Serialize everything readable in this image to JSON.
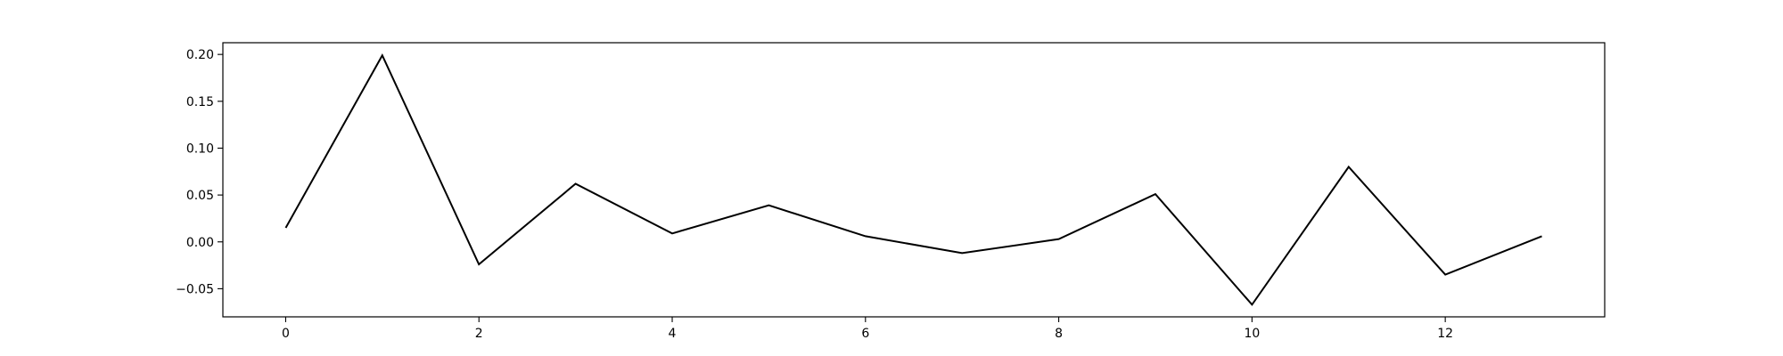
{
  "chart_data": {
    "type": "line",
    "title": "",
    "xlabel": "",
    "ylabel": "",
    "xlim": [
      -0.65,
      13.65
    ],
    "ylim": [
      -0.08,
      0.2125
    ],
    "x_ticks": [
      0,
      2,
      4,
      6,
      8,
      10,
      12
    ],
    "x_tick_labels": [
      "0",
      "2",
      "4",
      "6",
      "8",
      "10",
      "12"
    ],
    "y_ticks": [
      -0.05,
      0.0,
      0.05,
      0.1,
      0.15,
      0.2
    ],
    "y_tick_labels": [
      "−0.05",
      "0.00",
      "0.05",
      "0.10",
      "0.15",
      "0.20"
    ],
    "grid": false,
    "legend": "none",
    "series": [
      {
        "color": "#000000",
        "x": [
          0,
          1,
          2,
          3,
          4,
          5,
          6,
          7,
          8,
          9,
          10,
          11,
          12,
          13
        ],
        "values": [
          0.015,
          0.199,
          -0.024,
          0.062,
          0.009,
          0.039,
          0.006,
          -0.012,
          0.003,
          0.051,
          -0.067,
          0.08,
          -0.035,
          0.006
        ]
      }
    ]
  }
}
